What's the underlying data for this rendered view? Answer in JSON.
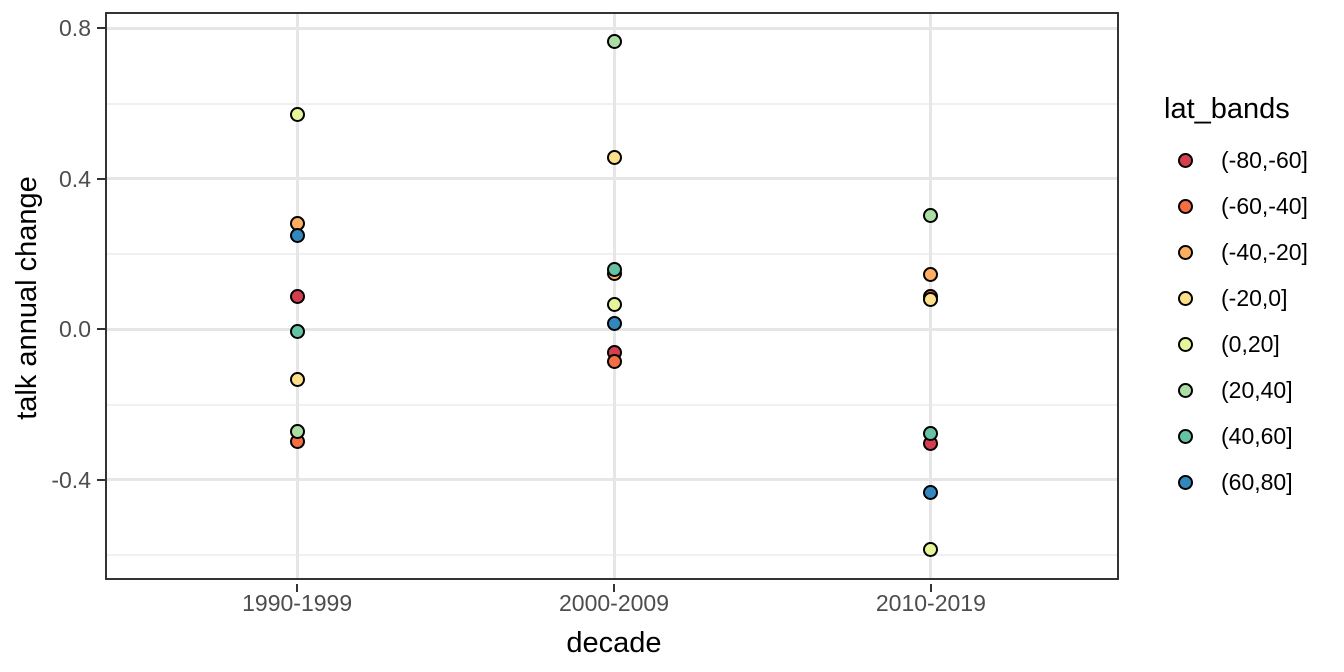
{
  "chart_data": {
    "type": "scatter",
    "title": "",
    "xlabel": "decade",
    "ylabel": "talk annual change",
    "legend_title": "lat_bands",
    "legend_position": "right",
    "grid": true,
    "marker": "filled-circle-black-outline",
    "categories": [
      "1990-1999",
      "2000-2009",
      "2010-2019"
    ],
    "y_axis": {
      "ylim": [
        -0.671,
        0.838
      ],
      "major_ticks": [
        {
          "value": 0.8,
          "label": "0.8"
        },
        {
          "value": 0.4,
          "label": "0.4"
        },
        {
          "value": 0.0,
          "label": "0.0"
        },
        {
          "value": -0.4,
          "label": "-0.4"
        }
      ],
      "minor_gridlines": [
        0.6,
        0.2,
        -0.2,
        -0.6
      ]
    },
    "series": [
      {
        "name": "(-80,-60]",
        "color": "#D53E4F",
        "values": [
          0.087,
          -0.061,
          -0.302
        ]
      },
      {
        "name": "(-60,-40]",
        "color": "#F46D43",
        "values": [
          -0.297,
          -0.084,
          0.088
        ]
      },
      {
        "name": "(-40,-20]",
        "color": "#FDAE61",
        "values": [
          0.282,
          0.148,
          0.147
        ]
      },
      {
        "name": "(-20,0]",
        "color": "#FEE08B",
        "values": [
          -0.132,
          0.458,
          0.08
        ]
      },
      {
        "name": "(0,20]",
        "color": "#E6F598",
        "values": [
          0.572,
          0.065,
          -0.585
        ]
      },
      {
        "name": "(20,40]",
        "color": "#ABDDA4",
        "values": [
          -0.27,
          0.766,
          0.302
        ]
      },
      {
        "name": "(40,60]",
        "color": "#66C2A5",
        "values": [
          -0.005,
          0.16,
          -0.276
        ]
      },
      {
        "name": "(60,80]",
        "color": "#3288BD",
        "values": [
          0.249,
          0.016,
          -0.433
        ]
      }
    ],
    "colors": {
      "panel_border": "#333333",
      "tick_mark": "#333333",
      "tick_label": "#4D4D4D",
      "axis_title": "#000000",
      "point_outline": "#000000",
      "grid_major": "#E6E6E6",
      "grid_minor": "#F0F0F0",
      "background": "#FFFFFF"
    }
  }
}
